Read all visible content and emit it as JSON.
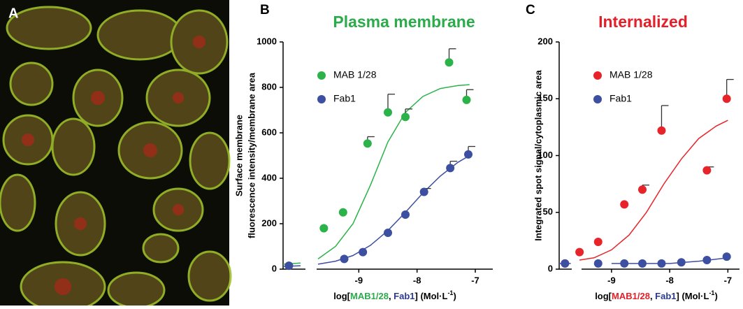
{
  "image_panel": {
    "label": "A"
  },
  "chart_data": [
    {
      "type": "scatter",
      "panel": "B",
      "title": "Plasma membrane",
      "title_color": "#2bab4a",
      "ylabel": [
        "Surface membrane",
        "fluorescence intensity/membrane area"
      ],
      "xlabel": [
        {
          "text": "log[",
          "color": "#000000"
        },
        {
          "text": "MAB1/28",
          "color": "#2bab4a"
        },
        {
          "text": ", ",
          "color": "#000000"
        },
        {
          "text": "Fab1",
          "color": "#2b3a8f"
        },
        {
          "text": "] (Mol·L",
          "color": "#000000"
        },
        {
          "text": "-1",
          "color": "#000000",
          "sup": true
        },
        {
          "text": ")",
          "color": "#000000"
        }
      ],
      "xlim": [
        -10.3,
        -6.7
      ],
      "xticks": [
        -9,
        -8,
        -7
      ],
      "ylim": [
        0,
        1000
      ],
      "yticks": [
        0,
        200,
        400,
        600,
        800,
        1000
      ],
      "legend": "upper left",
      "series": [
        {
          "name": "MAB 1/28",
          "color": "#2bb34a",
          "x": [
            -10.2,
            -9.6,
            -9.27,
            -8.85,
            -8.5,
            -8.2,
            -7.45,
            -7.15
          ],
          "values": [
            15,
            180,
            250,
            553,
            690,
            670,
            910,
            745
          ],
          "errors": [
            null,
            null,
            null,
            30,
            80,
            35,
            60,
            45
          ],
          "fit": {
            "x": [
              -10.3,
              -10.0,
              -9.85,
              -9.7,
              -9.4,
              -9.1,
              -8.8,
              -8.5,
              -8.2,
              -7.9,
              -7.6,
              -7.3,
              -7.1
            ],
            "values": [
              22,
              27,
              null,
              45,
              100,
              200,
              370,
              560,
              690,
              760,
              795,
              808,
              812
            ]
          }
        },
        {
          "name": "Fab1",
          "color": "#3d4fa0",
          "x": [
            -10.2,
            -9.25,
            -8.93,
            -8.5,
            -8.2,
            -7.88,
            -7.43,
            -7.12
          ],
          "values": [
            15,
            45,
            75,
            160,
            240,
            340,
            445,
            505
          ],
          "errors": [
            null,
            null,
            null,
            null,
            null,
            15,
            30,
            35
          ],
          "fit": {
            "x": [
              -10.3,
              -10.0,
              -9.85,
              -9.7,
              -9.4,
              -9.1,
              -8.8,
              -8.5,
              -8.2,
              -7.9,
              -7.6,
              -7.3,
              -7.1
            ],
            "values": [
              12,
              15,
              null,
              22,
              35,
              60,
              105,
              170,
              250,
              335,
              410,
              470,
              500
            ]
          }
        }
      ]
    },
    {
      "type": "scatter",
      "panel": "C",
      "title": "Internalized",
      "title_color": "#e3202a",
      "ylabel": [
        "Integrated spot signal/cytoplasmic area"
      ],
      "xlabel": [
        {
          "text": "log[",
          "color": "#000000"
        },
        {
          "text": "MAB1/28",
          "color": "#e3202a"
        },
        {
          "text": ", ",
          "color": "#000000"
        },
        {
          "text": "Fab1",
          "color": "#2b3a8f"
        },
        {
          "text": "] (Mol·L",
          "color": "#000000"
        },
        {
          "text": "-1",
          "color": "#000000",
          "sup": true
        },
        {
          "text": ")",
          "color": "#000000"
        }
      ],
      "xlim": [
        -9.9,
        -6.8
      ],
      "xticks": [
        -9,
        -8,
        -7
      ],
      "ylim": [
        0,
        200
      ],
      "yticks": [
        0,
        50,
        100,
        150,
        200
      ],
      "legend": "upper left",
      "series": [
        {
          "name": "MAB 1/28",
          "color": "#e8242b",
          "x": [
            -9.8,
            -9.55,
            -9.23,
            -8.78,
            -8.47,
            -8.14,
            -7.36,
            -7.02
          ],
          "values": [
            5,
            15,
            24,
            57,
            70,
            122,
            87,
            150
          ],
          "errors": [
            null,
            null,
            null,
            null,
            4,
            22,
            3,
            17
          ],
          "fit": {
            "x": [
              -9.55,
              -9.3,
              -9.0,
              -8.7,
              -8.4,
              -8.1,
              -7.8,
              -7.5,
              -7.2,
              -7.0
            ],
            "values": [
              8,
              10,
              17,
              30,
              50,
              75,
              97,
              115,
              126,
              131
            ]
          }
        },
        {
          "name": "Fab1",
          "color": "#3d4fa0",
          "x": [
            -9.8,
            -9.23,
            -8.78,
            -8.47,
            -8.14,
            -7.8,
            -7.36,
            -7.02
          ],
          "values": [
            5,
            5,
            5,
            5,
            5,
            6,
            8,
            11
          ],
          "errors": [
            null,
            null,
            null,
            null,
            null,
            null,
            null,
            null
          ],
          "fit": {
            "x": [
              -9.9,
              -9.7,
              -9.6,
              -9.0,
              -8.0,
              -7.5,
              -7.0
            ],
            "values": [
              5,
              5,
              null,
              5,
              5,
              7,
              10
            ]
          }
        }
      ]
    }
  ]
}
